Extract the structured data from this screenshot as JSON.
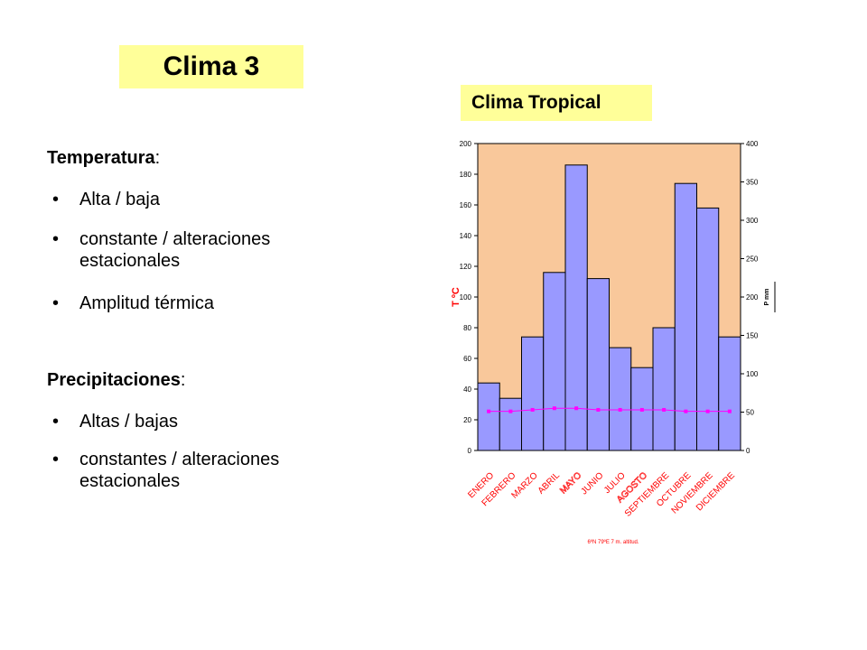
{
  "slide": {
    "title": "Clima 3",
    "chart_title": "Clima Tropical"
  },
  "text": {
    "temp_head": "Temperatura",
    "temp_colon": ":",
    "temp_bullets": [
      "Alta / baja",
      "constante / alteraciones estacionales",
      "Amplitud térmica"
    ],
    "prec_head": "Precipitaciones",
    "prec_colon": ":",
    "prec_bullets": [
      "Altas / bajas",
      "constantes / alteraciones estacionales"
    ],
    "bullet_char": "•"
  },
  "chart_data": {
    "type": "bar",
    "categories": [
      "ENERO",
      "FEBRERO",
      "MARZO",
      "ABRIL",
      "MAYO",
      "JUNIO",
      "JULIO",
      "AGOSTO",
      "SEPTIEMBRE",
      "OCTUBRE",
      "NOVIEMBRE",
      "DICIEMBRE"
    ],
    "category_labels": [
      "ENERO",
      "FEBRERO",
      "MARZO",
      "ABRIL",
      "MAYO",
      "JUNIO",
      "JULIO",
      "AGOSTO",
      "SEPTIEMBRE",
      "OCTUBRE",
      "NOVIEMBRE",
      "DICIEMBRE"
    ],
    "series": [
      {
        "type": "bar",
        "axis": "left",
        "values": [
          44,
          34,
          74,
          116,
          186,
          112,
          67,
          54,
          80,
          174,
          158,
          74
        ]
      },
      {
        "type": "line",
        "axis": "right",
        "values": [
          51,
          51,
          53,
          55,
          55,
          53,
          53,
          53,
          53,
          51,
          51,
          51
        ]
      }
    ],
    "left_axis": {
      "label": "T ºC",
      "ylim": [
        0,
        200
      ],
      "ticks": [
        0,
        20,
        40,
        60,
        80,
        100,
        120,
        140,
        160,
        180,
        200
      ]
    },
    "right_axis": {
      "label": "P mm",
      "ylim": [
        0,
        400
      ],
      "ticks": [
        0,
        50,
        100,
        150,
        200,
        250,
        300,
        350,
        400
      ]
    },
    "footnote": "6ºN 79ºE 7 m. altitud.",
    "colors": {
      "plot_bg": "#f9c89b",
      "bar": "#9999ff",
      "bar_edge": "#000000",
      "line": "#ff00ff",
      "label_red": "#ff0000"
    }
  }
}
